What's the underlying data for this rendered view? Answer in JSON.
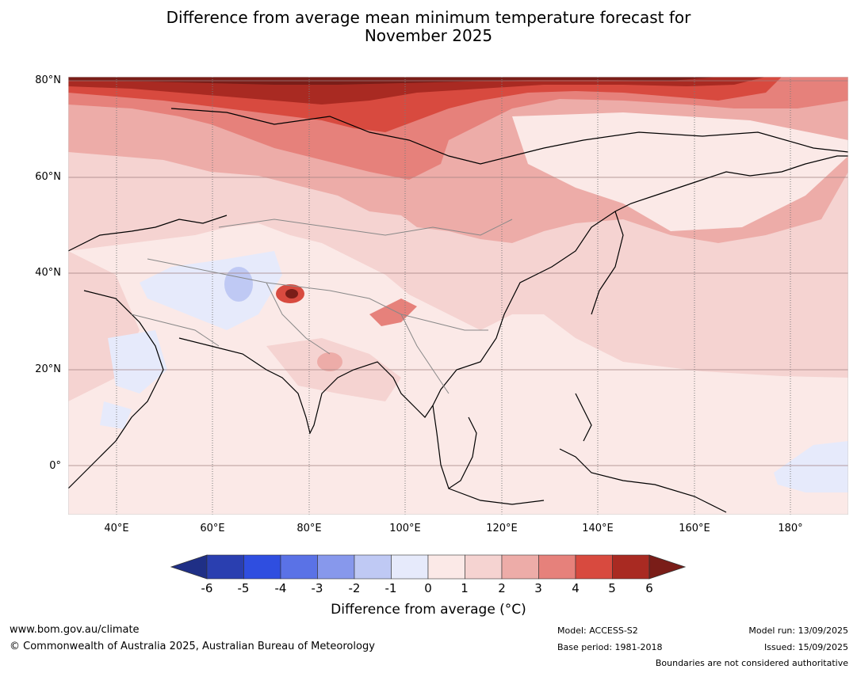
{
  "title_line1": "Difference from average mean minimum temperature forecast for",
  "title_line2": "November 2025",
  "lat_labels": [
    "80°N",
    "60°N",
    "40°N",
    "20°N",
    "0°"
  ],
  "lon_labels": [
    "40°E",
    "60°E",
    "80°E",
    "100°E",
    "120°E",
    "140°E",
    "160°E",
    "180°"
  ],
  "colorbar": {
    "ticks": [
      "-6",
      "-5",
      "-4",
      "-3",
      "-2",
      "-1",
      "0",
      "1",
      "2",
      "3",
      "4",
      "5",
      "6"
    ],
    "colors": [
      "#1f2f86",
      "#2a3fb0",
      "#2f4ee0",
      "#5a72e6",
      "#8798ec",
      "#bfc9f4",
      "#e6eafb",
      "#fbe9e7",
      "#f5d3d1",
      "#edaca8",
      "#e6817b",
      "#d84a3f",
      "#a92a22",
      "#7a1d18"
    ],
    "title": "Difference from average (°C)"
  },
  "footer": {
    "website": "www.bom.gov.au/climate",
    "copyright": "© Commonwealth of Australia 2025, Australian Bureau of Meteorology",
    "model": "Model: ACCESS-S2",
    "base_period": "Base period: 1981-2018",
    "model_run": "Model run: 13/09/2025",
    "issued": "Issued: 15/09/2025",
    "disclaimer": "Boundaries are not considered authoritative"
  }
}
